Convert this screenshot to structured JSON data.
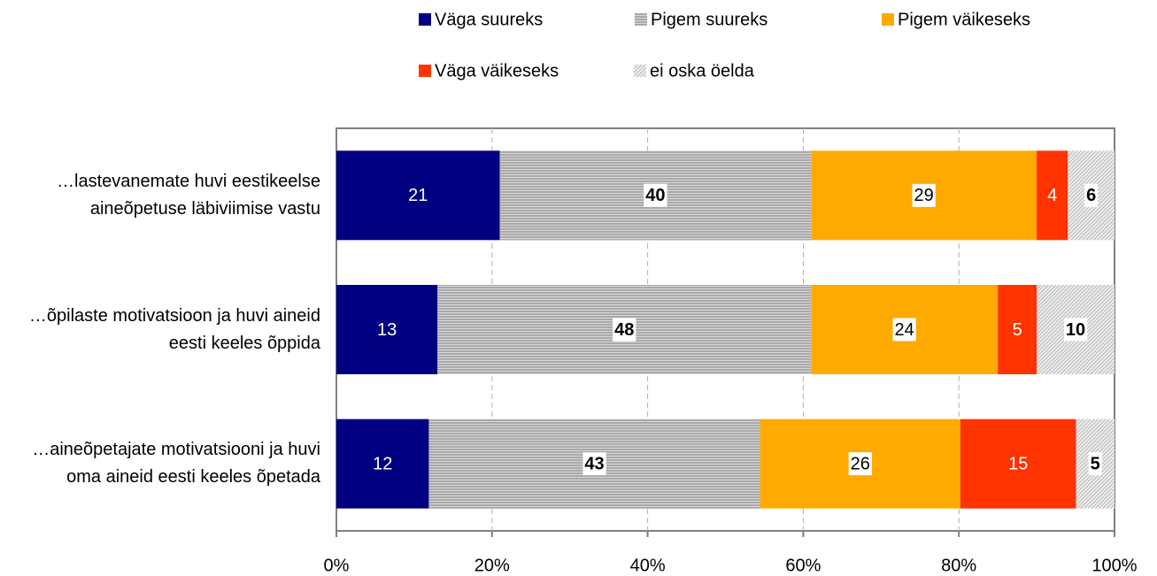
{
  "chart_data": {
    "type": "bar",
    "orientation": "horizontal",
    "stacking": "percent",
    "categories": [
      "…lastevanemate huvi eestikeelse aineõpetuse läbiviimise vastu",
      "…õpilaste motivatsioon ja huvi aineid eesti keeles õppida",
      "…aineõpetajate motivatsiooni ja huvi oma aineid eesti keeles õpetada"
    ],
    "series": [
      {
        "name": "Väga suureks",
        "color": "#000080",
        "values": [
          21,
          13,
          12
        ]
      },
      {
        "name": "Pigem suureks",
        "color": "#a0a0a0",
        "pattern": "horizontal",
        "values": [
          40,
          48,
          43
        ]
      },
      {
        "name": "Pigem väikeseks",
        "color": "#ffaa00",
        "values": [
          29,
          24,
          26
        ]
      },
      {
        "name": "Väga väikeseks",
        "color": "#ff3300",
        "values": [
          4,
          5,
          15
        ]
      },
      {
        "name": "ei oska öelda",
        "color": "#a0a0a0",
        "pattern": "diagonal",
        "values": [
          6,
          10,
          5
        ]
      }
    ],
    "xlim": [
      0,
      100
    ],
    "xticks": [
      {
        "value": 0,
        "label": "0%"
      },
      {
        "value": 20,
        "label": "20%"
      },
      {
        "value": 40,
        "label": "40%"
      },
      {
        "value": 60,
        "label": "60%"
      },
      {
        "value": 80,
        "label": "80%"
      },
      {
        "value": 100,
        "label": "100%"
      }
    ],
    "grid": true,
    "legend": "top"
  }
}
